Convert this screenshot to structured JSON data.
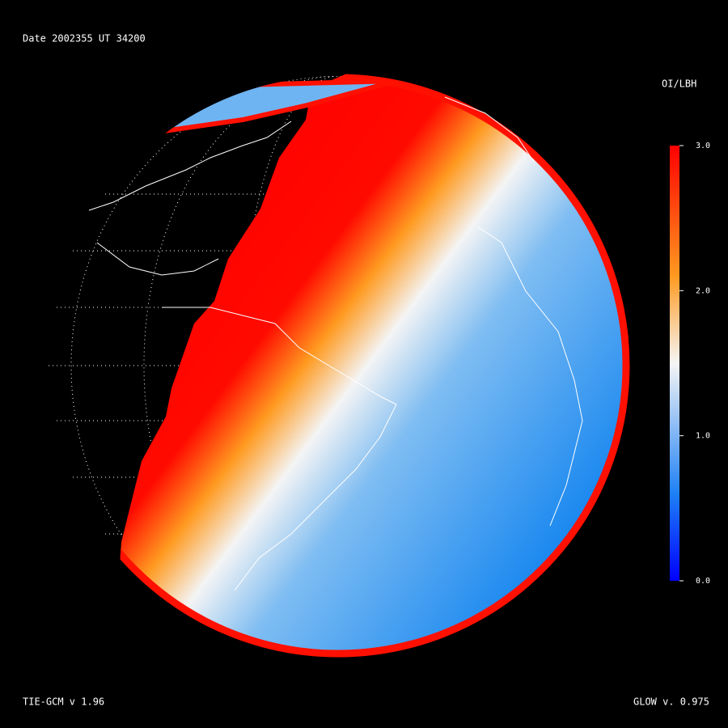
{
  "header": {
    "title": "Date 2002355  UT 34200"
  },
  "colorbar": {
    "title": "OI/LBH",
    "lim": [
      0,
      3
    ],
    "ticks": [
      {
        "value": 0,
        "label": "0.0"
      },
      {
        "value": 1,
        "label": "1.0"
      },
      {
        "value": 2,
        "label": "2.0"
      },
      {
        "value": 3,
        "label": "3.0"
      }
    ]
  },
  "footer": {
    "left": "TIE-GCM v 1.96",
    "right": "GLOW v. 0.975"
  }
}
